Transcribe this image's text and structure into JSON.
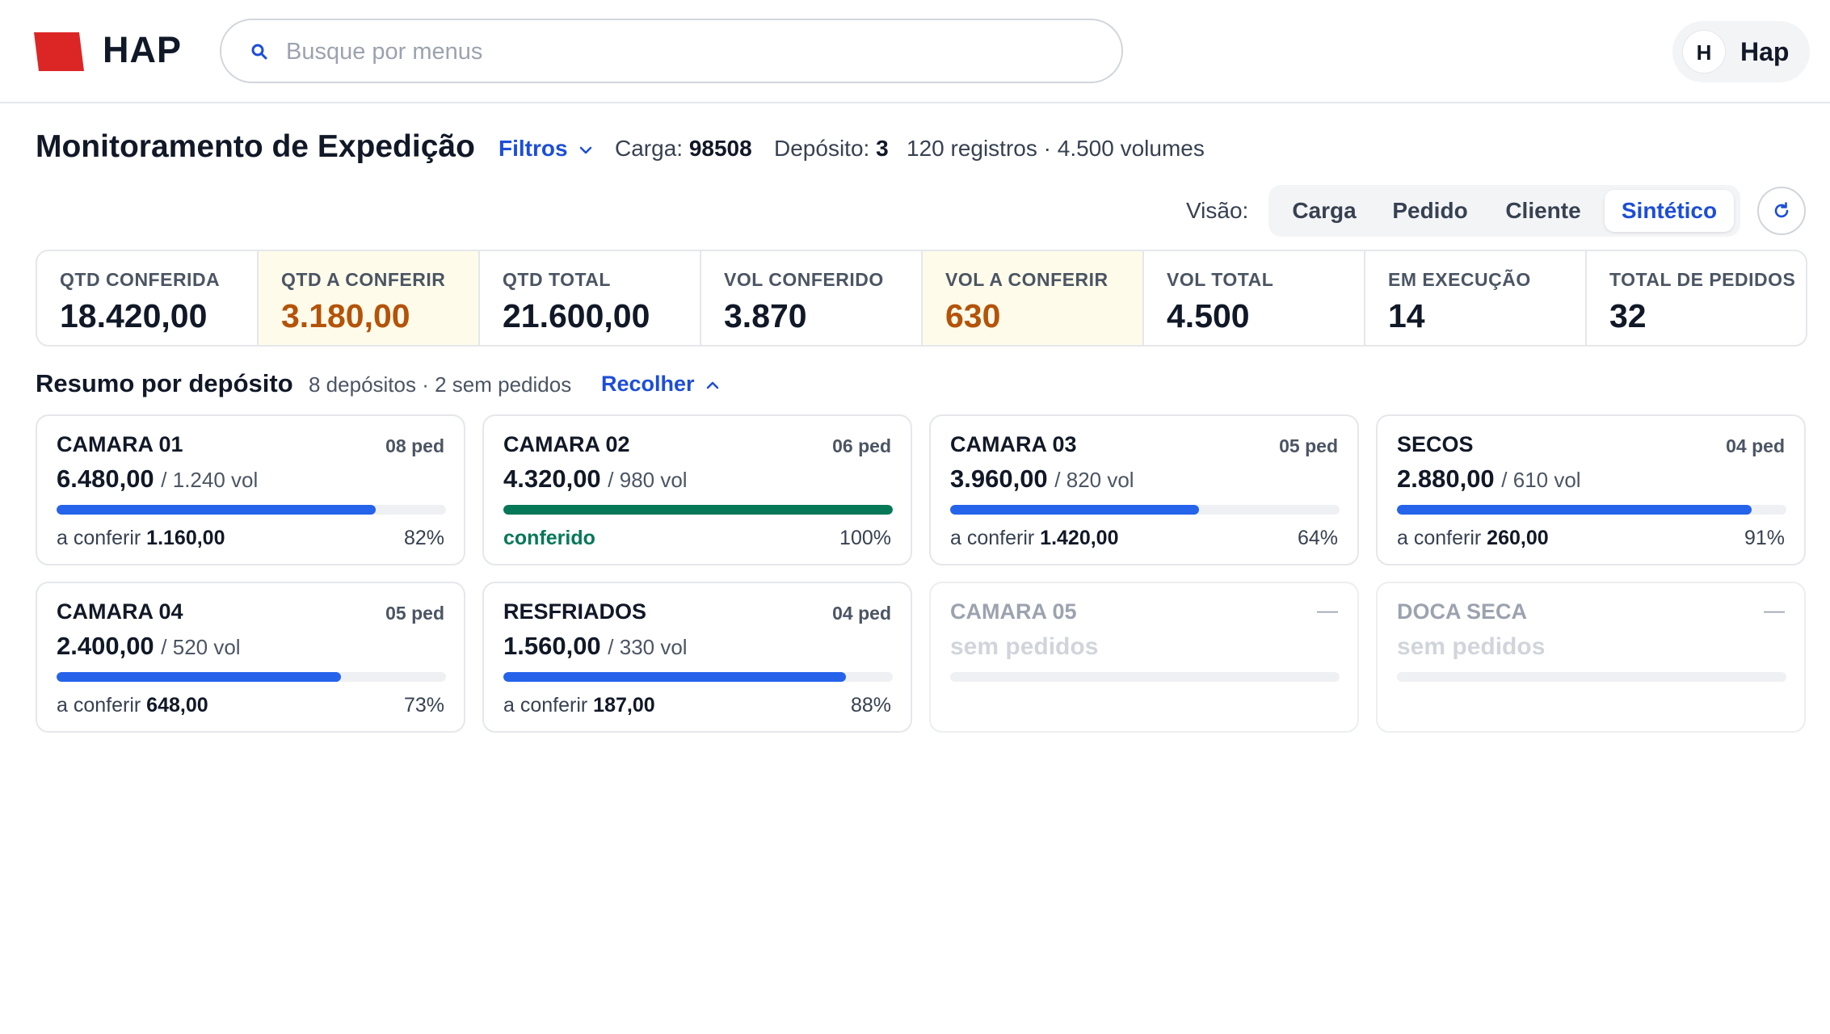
{
  "brand": {
    "name": "HAP",
    "logo_color": "#dc2626"
  },
  "search": {
    "placeholder": "Busque por menus",
    "value": ""
  },
  "user": {
    "initial": "H",
    "name": "Hap"
  },
  "page": {
    "title": "Monitoramento de Expedição",
    "filters_label": "Filtros",
    "carga_label": "Carga:",
    "carga_value": "98508",
    "deposito_label": "Depósito:",
    "deposito_value": "3",
    "summary": "120 registros · 4.500 volumes"
  },
  "view": {
    "label": "Visão:",
    "options": [
      "Carga",
      "Pedido",
      "Cliente",
      "Sintético"
    ],
    "selected": "Sintético"
  },
  "stats": [
    {
      "label": "QTD CONFERIDA",
      "value": "18.420,00"
    },
    {
      "label": "QTD A CONFERIR",
      "value": "3.180,00"
    },
    {
      "label": "QTD TOTAL",
      "value": "21.600,00"
    },
    {
      "label": "VOL CONFERIDO",
      "value": "3.870"
    },
    {
      "label": "VOL A CONFERIR",
      "value": "630"
    },
    {
      "label": "VOL TOTAL",
      "value": "4.500"
    },
    {
      "label": "EM EXECUÇÃO",
      "value": "14"
    },
    {
      "label": "TOTAL DE PEDIDOS",
      "value": "32"
    }
  ],
  "section": {
    "title": "Resumo por depósito",
    "meta": "8 depósitos · 2 sem pedidos",
    "collapse_label": "Recolher"
  },
  "deposits": [
    {
      "name": "CAMARA 01",
      "orders": "08 ped",
      "qty": "6.480,00",
      "vol": "/ 1.240 vol",
      "status_label": "a conferir",
      "status_value": "1.160,00",
      "pct": "82%",
      "progress": 0.82
    },
    {
      "name": "CAMARA 02",
      "orders": "06 ped",
      "qty": "4.320,00",
      "vol": "/ 980 vol",
      "status_label": "conferido",
      "status_value": "",
      "pct": "100%",
      "progress": 1.0
    },
    {
      "name": "CAMARA 03",
      "orders": "05 ped",
      "qty": "3.960,00",
      "vol": "/ 820 vol",
      "status_label": "a conferir",
      "status_value": "1.420,00",
      "pct": "64%",
      "progress": 0.64
    },
    {
      "name": "SECOS",
      "orders": "04 ped",
      "qty": "2.880,00",
      "vol": "/ 610 vol",
      "status_label": "a conferir",
      "status_value": "260,00",
      "pct": "91%",
      "progress": 0.91
    },
    {
      "name": "CAMARA 04",
      "orders": "05 ped",
      "qty": "2.400,00",
      "vol": "/ 520 vol",
      "status_label": "a conferir",
      "status_value": "648,00",
      "pct": "73%",
      "progress": 0.73
    },
    {
      "name": "RESFRIADOS",
      "orders": "04 ped",
      "qty": "1.560,00",
      "vol": "/ 330 vol",
      "status_label": "a conferir",
      "status_value": "187,00",
      "pct": "88%",
      "progress": 0.88
    },
    {
      "name": "CAMARA 05",
      "orders": "—",
      "qty": "sem pedidos",
      "progress": 0
    },
    {
      "name": "DOCA SECA",
      "orders": "—",
      "qty": "sem pedidos",
      "progress": 0
    }
  ],
  "colors": {
    "accent": "#1d4ed8",
    "progress": "#2563eb",
    "complete": "#047857",
    "warning_text": "#b45309",
    "warning_bg": "#fefbea"
  }
}
